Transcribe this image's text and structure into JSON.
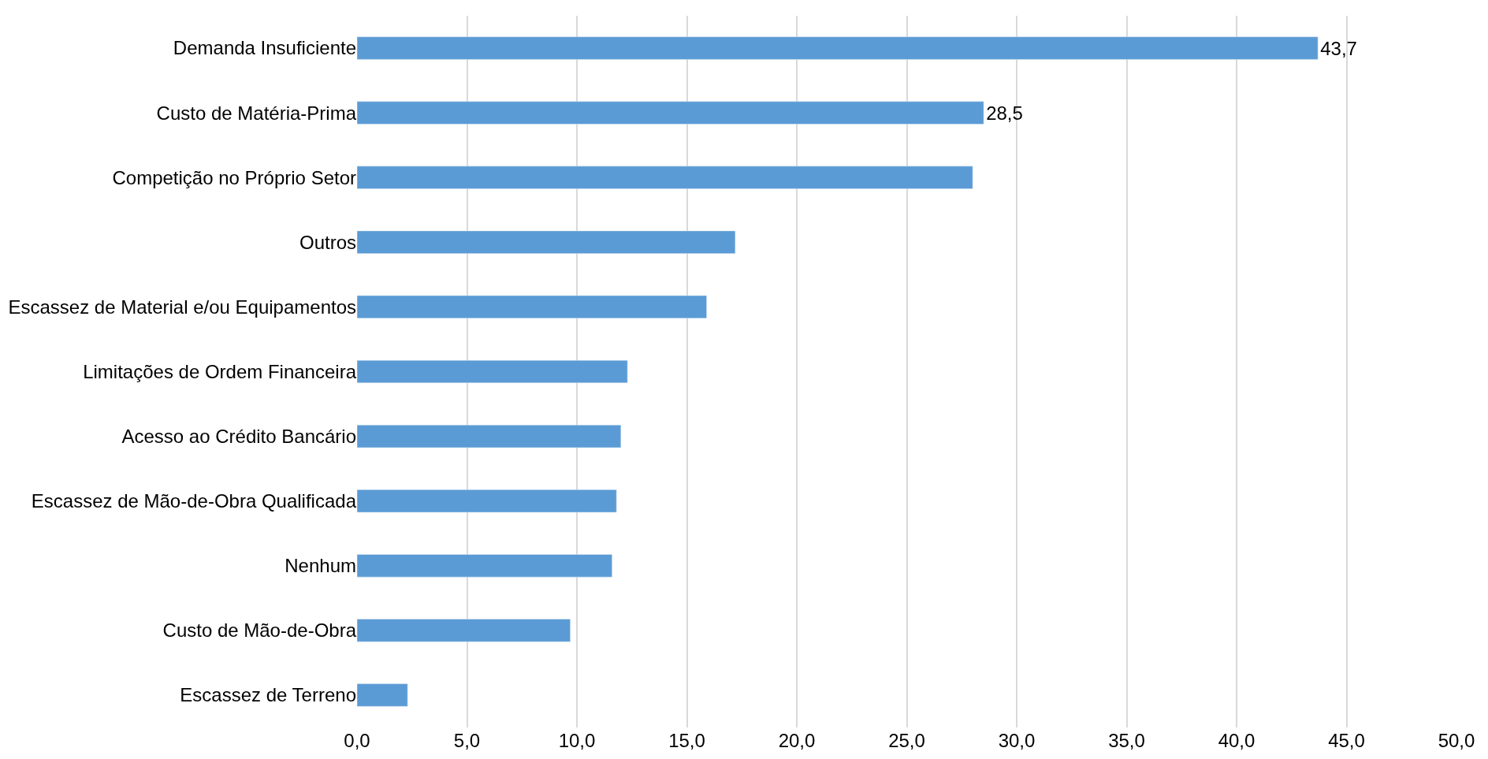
{
  "chart_data": {
    "type": "bar",
    "orientation": "horizontal",
    "categories": [
      "Demanda Insuficiente",
      "Custo de Matéria-Prima",
      "Competição no Próprio Setor",
      "Outros",
      "Escassez de Material e/ou Equipamentos",
      "Limitações de Ordem Financeira",
      "Acesso ao Crédito Bancário",
      "Escassez de Mão-de-Obra Qualificada",
      "Nenhum",
      "Custo de Mão-de-Obra",
      "Escassez de Terreno"
    ],
    "values": [
      43.7,
      28.5,
      28.0,
      17.2,
      15.9,
      12.3,
      12.0,
      11.8,
      11.6,
      9.7,
      2.3
    ],
    "value_labels": [
      "43,7",
      "28,5",
      null,
      null,
      null,
      null,
      null,
      null,
      null,
      null,
      null
    ],
    "color": "#5b9bd5",
    "xlim": [
      0,
      50
    ],
    "xticks": [
      {
        "value": 0,
        "label": "0,0"
      },
      {
        "value": 5,
        "label": "5,0"
      },
      {
        "value": 10,
        "label": "10,0"
      },
      {
        "value": 15,
        "label": "15,0"
      },
      {
        "value": 20,
        "label": "20,0"
      },
      {
        "value": 25,
        "label": "25,0"
      },
      {
        "value": 30,
        "label": "30,0"
      },
      {
        "value": 35,
        "label": "35,0"
      },
      {
        "value": 40,
        "label": "40,0"
      },
      {
        "value": 45,
        "label": "45,0"
      },
      {
        "value": 50,
        "label": "50,0"
      }
    ],
    "grid": "x",
    "legend": false
  }
}
